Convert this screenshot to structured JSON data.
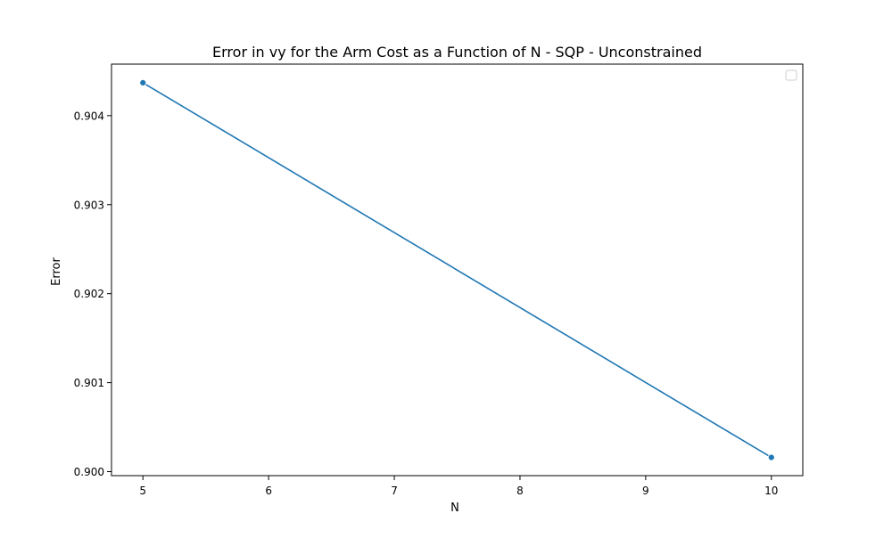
{
  "chart_data": {
    "type": "line",
    "title": "Error in vy for the Arm Cost as a Function of N - SQP - Unconstrained",
    "xlabel": "N",
    "ylabel": "Error",
    "x": [
      5,
      10
    ],
    "series": [
      {
        "values": [
          0.90437,
          0.90016
        ],
        "color": "#1f77b4",
        "marker": "circle"
      }
    ],
    "xlim": [
      4.75,
      10.25
    ],
    "ylim": [
      0.899955,
      0.904579
    ],
    "xticks": [
      5,
      6,
      7,
      8,
      9,
      10
    ],
    "xtick_labels": [
      "5",
      "6",
      "7",
      "8",
      "9",
      "10"
    ],
    "yticks": [
      0.9,
      0.901,
      0.902,
      0.903,
      0.904
    ],
    "ytick_labels": [
      "0.900",
      "0.901",
      "0.902",
      "0.903",
      "0.904"
    ],
    "grid": false,
    "legend": {
      "placement": "top-right",
      "entries": []
    }
  }
}
